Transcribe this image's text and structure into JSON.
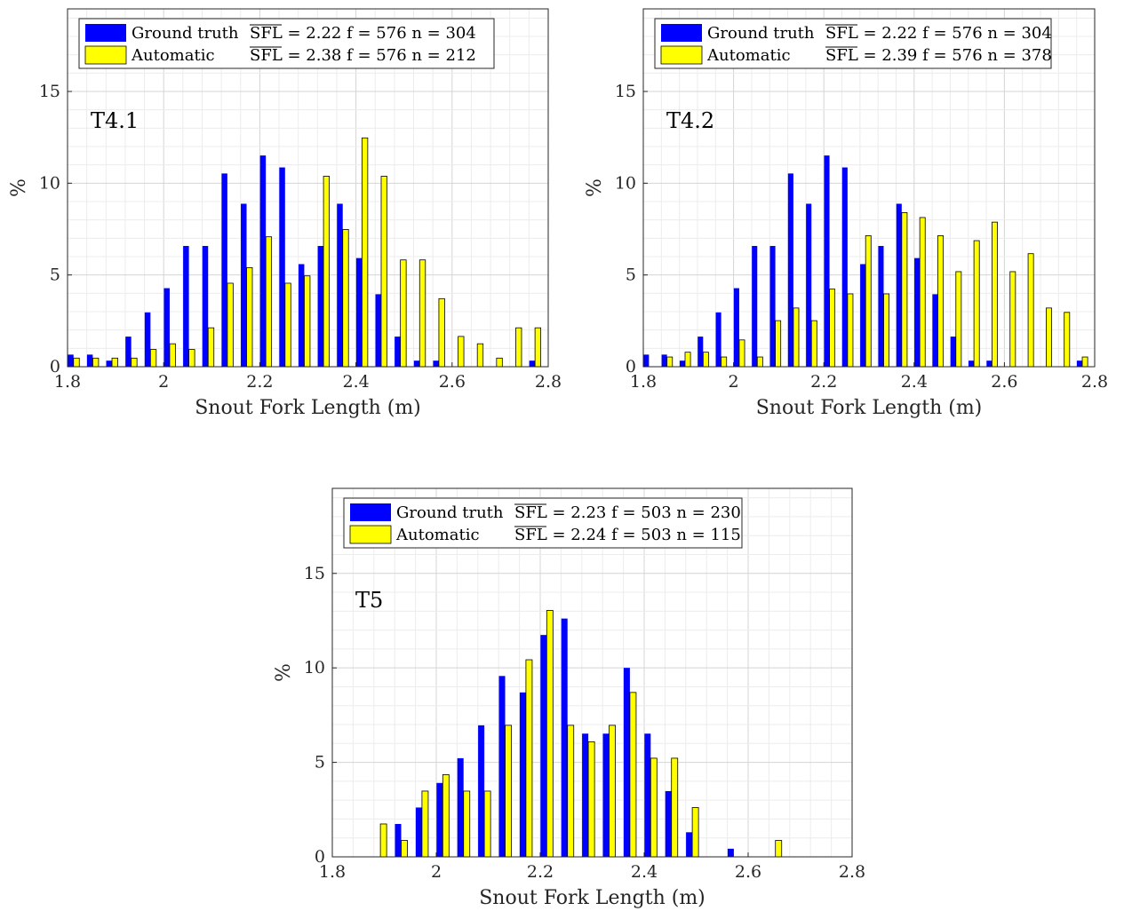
{
  "chart_data": [
    {
      "type": "bar",
      "panel_label": "T4.1",
      "xlabel": "Snout Fork Length (m)",
      "ylabel": "%",
      "xlim": [
        1.8,
        2.8
      ],
      "ylim": [
        0,
        19.5
      ],
      "xticks": [
        1.8,
        2.0,
        2.2,
        2.4,
        2.6,
        2.8
      ],
      "xtick_labels": [
        "1.8",
        "2",
        "2.2",
        "2.4",
        "2.6",
        "2.8"
      ],
      "yticks": [
        0,
        5,
        10,
        15
      ],
      "ytick_labels": [
        "0",
        "5",
        "10",
        "15"
      ],
      "grid": true,
      "legend_position": "top-left",
      "bin_centers": [
        1.8125,
        1.8525,
        1.8925,
        1.9325,
        1.9725,
        2.0125,
        2.0525,
        2.0925,
        2.1325,
        2.1725,
        2.2125,
        2.2525,
        2.2925,
        2.3325,
        2.3725,
        2.4125,
        2.4525,
        2.4925,
        2.5325,
        2.5725,
        2.6125,
        2.6525,
        2.6925,
        2.7325,
        2.7725
      ],
      "series": [
        {
          "name": "Ground truth",
          "stats": "SFL = 2.22 f = 576 n = 304",
          "color": "#0000ff",
          "values": [
            0.66,
            0.66,
            0.33,
            1.64,
            2.96,
            4.28,
            6.58,
            6.58,
            10.53,
            8.88,
            11.51,
            10.86,
            5.59,
            6.58,
            8.88,
            5.92,
            3.95,
            1.64,
            0.33,
            0.33,
            0,
            0,
            0,
            0,
            0.33
          ]
        },
        {
          "name": "Automatic",
          "stats": "SFL = 2.38 f = 576 n = 212",
          "color": "#ffff00",
          "values": [
            0.47,
            0.47,
            0.47,
            0.47,
            0.94,
            1.25,
            0.94,
            2.12,
            4.55,
            5.4,
            7.08,
            4.55,
            4.95,
            10.38,
            7.48,
            12.47,
            10.38,
            5.82,
            5.82,
            3.71,
            1.65,
            1.25,
            0.47,
            2.12,
            2.12
          ]
        }
      ]
    },
    {
      "type": "bar",
      "panel_label": "T4.2",
      "xlabel": "Snout Fork Length (m)",
      "ylabel": "%",
      "xlim": [
        1.8,
        2.8
      ],
      "ylim": [
        0,
        19.5
      ],
      "xticks": [
        1.8,
        2.0,
        2.2,
        2.4,
        2.6,
        2.8
      ],
      "xtick_labels": [
        "1.8",
        "2",
        "2.2",
        "2.4",
        "2.6",
        "2.8"
      ],
      "yticks": [
        0,
        5,
        10,
        15
      ],
      "ytick_labels": [
        "0",
        "5",
        "10",
        "15"
      ],
      "grid": true,
      "legend_position": "top-left",
      "bin_centers": [
        1.8125,
        1.8525,
        1.8925,
        1.9325,
        1.9725,
        2.0125,
        2.0525,
        2.0925,
        2.1325,
        2.1725,
        2.2125,
        2.2525,
        2.2925,
        2.3325,
        2.3725,
        2.4125,
        2.4525,
        2.4925,
        2.5325,
        2.5725,
        2.6125,
        2.6525,
        2.6925,
        2.7325,
        2.7725
      ],
      "series": [
        {
          "name": "Ground truth",
          "stats": "SFL = 2.22 f = 576 n = 304",
          "color": "#0000ff",
          "values": [
            0.66,
            0.66,
            0.33,
            1.64,
            2.96,
            4.28,
            6.58,
            6.58,
            10.53,
            8.88,
            11.51,
            10.86,
            5.59,
            6.58,
            8.88,
            5.92,
            3.95,
            1.64,
            0.33,
            0.33,
            0,
            0,
            0,
            0,
            0.33
          ]
        },
        {
          "name": "Automatic",
          "stats": "SFL = 2.39 f = 576 n = 378",
          "color": "#ffff00",
          "values": [
            0,
            0.53,
            0.79,
            0.79,
            0.53,
            1.46,
            0.53,
            2.51,
            3.2,
            2.51,
            4.23,
            3.97,
            7.14,
            3.97,
            8.4,
            8.13,
            7.14,
            5.18,
            6.87,
            7.88,
            5.18,
            6.16,
            3.2,
            2.96,
            0.53
          ]
        }
      ]
    },
    {
      "type": "bar",
      "panel_label": "T5",
      "xlabel": "Snout Fork Length (m)",
      "ylabel": "%",
      "xlim": [
        1.8,
        2.8
      ],
      "ylim": [
        0,
        19.5
      ],
      "xticks": [
        1.8,
        2.0,
        2.2,
        2.4,
        2.6,
        2.8
      ],
      "xtick_labels": [
        "1.8",
        "2",
        "2.2",
        "2.4",
        "2.6",
        "2.8"
      ],
      "yticks": [
        0,
        5,
        10,
        15
      ],
      "ytick_labels": [
        "0",
        "5",
        "10",
        "15"
      ],
      "grid": true,
      "legend_position": "top-left",
      "bin_centers": [
        1.8125,
        1.8525,
        1.8925,
        1.9325,
        1.9725,
        2.0125,
        2.0525,
        2.0925,
        2.1325,
        2.1725,
        2.2125,
        2.2525,
        2.2925,
        2.3325,
        2.3725,
        2.4125,
        2.4525,
        2.4925,
        2.5325,
        2.5725,
        2.6125,
        2.6525,
        2.6925,
        2.7325,
        2.7725
      ],
      "series": [
        {
          "name": "Ground truth",
          "stats": "SFL = 2.23 f = 503 n = 230",
          "color": "#0000ff",
          "values": [
            0,
            0,
            0,
            1.74,
            2.61,
            3.91,
            5.22,
            6.96,
            9.57,
            8.7,
            11.74,
            12.61,
            6.52,
            6.52,
            10.0,
            6.52,
            3.48,
            1.3,
            0,
            0.43,
            0,
            0,
            0,
            0,
            0
          ]
        },
        {
          "name": "Automatic",
          "stats": "SFL = 2.24 f = 503 n = 115",
          "color": "#ffff00",
          "values": [
            0,
            0,
            1.74,
            0.87,
            3.48,
            4.35,
            3.48,
            3.48,
            6.96,
            10.43,
            13.04,
            6.96,
            6.09,
            6.96,
            8.7,
            5.22,
            5.22,
            2.61,
            0,
            0,
            0,
            0.87,
            0,
            0,
            0
          ]
        }
      ]
    }
  ]
}
